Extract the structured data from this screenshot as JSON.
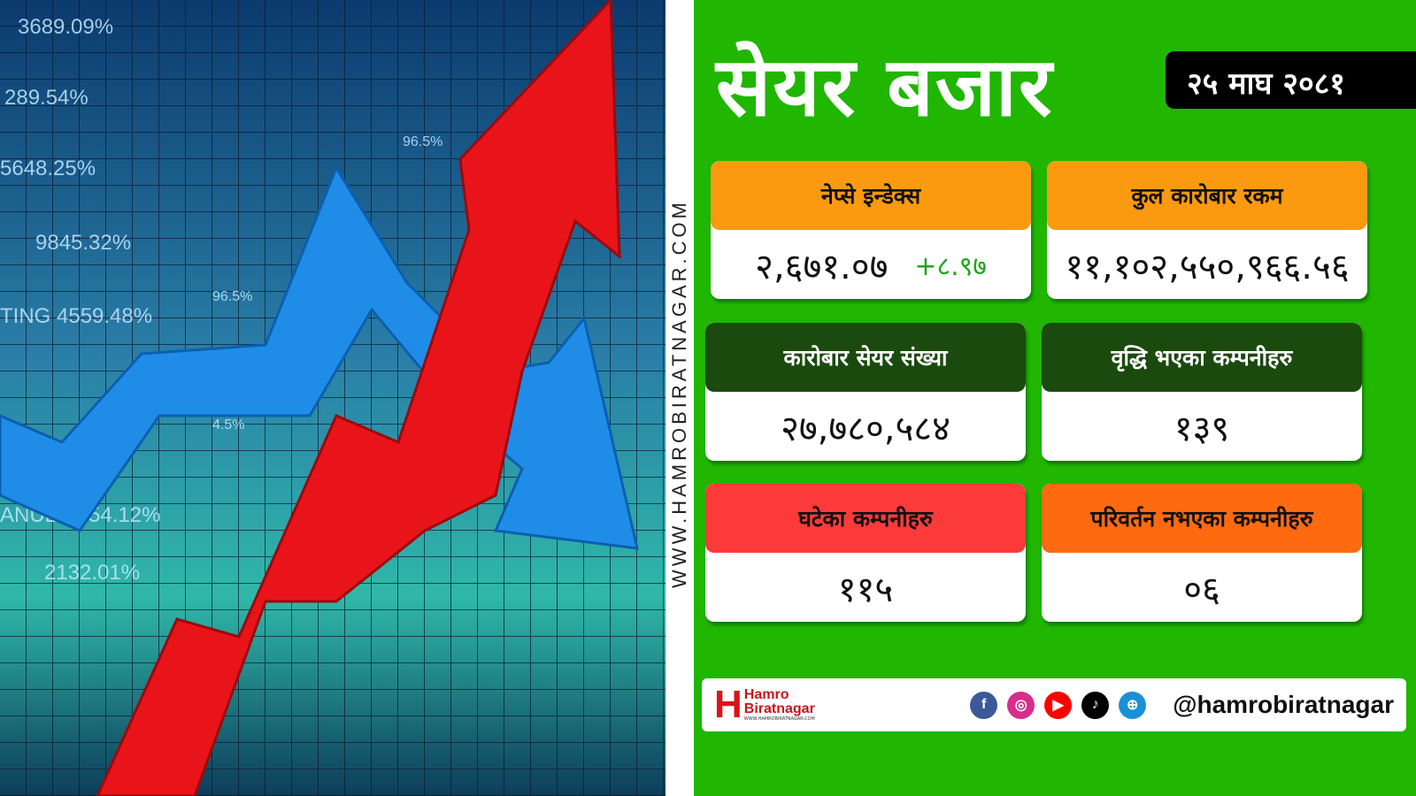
{
  "watermark": "WWW.HAMROBIRATNAGAR.COM",
  "left_image": {
    "labels": [
      "3689.09%",
      "289.54%",
      "5648.25%",
      "9845.32%",
      "TING 4559.48%",
      "ANUE 1254.12%",
      "2132.01%",
      "96.5%",
      "96.5%",
      "4.5%"
    ]
  },
  "title": "सेयर बजार",
  "date": "२५ माघ २०८१",
  "cards": [
    {
      "label": "नेप्से  इन्डेक्स",
      "value": "२,६७१.०७",
      "change": "+८.९७",
      "color": "#fb9a10",
      "text_color": "#111"
    },
    {
      "label": "कुल कारोबार रकम",
      "value": "११,१०२,५५०,९६६.५६",
      "color": "#fb9a10",
      "text_color": "#111"
    },
    {
      "label": "कारोबार सेयर संख्या",
      "value": "२७,७८०,५८४",
      "color": "#1b4a0e",
      "text_color": "#fff"
    },
    {
      "label": "वृद्धि भएका कम्पनीहरु",
      "value": "१३९",
      "color": "#1b4a0e",
      "text_color": "#fff"
    },
    {
      "label": "घटेका कम्पनीहरु",
      "value": "११५",
      "color": "#fd3a3a",
      "text_color": "#111"
    },
    {
      "label": "परिवर्तन नभएका कम्पनीहरु",
      "value": "०६",
      "color": "#fd6a10",
      "text_color": "#111"
    }
  ],
  "footer": {
    "logo_line1": "Hamro",
    "logo_line2": "Biratnagar",
    "logo_url": "WWW.HAMROBIRATNAGAR.COM",
    "handle": "@hamrobiratnagar",
    "icons": [
      {
        "name": "facebook-icon",
        "glyph": "f",
        "color": "#3b5998"
      },
      {
        "name": "instagram-icon",
        "glyph": "◎",
        "color": "#d62e8a"
      },
      {
        "name": "youtube-icon",
        "glyph": "▶",
        "color": "#ff0000"
      },
      {
        "name": "tiktok-icon",
        "glyph": "♪",
        "color": "#000000"
      },
      {
        "name": "globe-icon",
        "glyph": "⊕",
        "color": "#1a8fd6"
      }
    ]
  }
}
